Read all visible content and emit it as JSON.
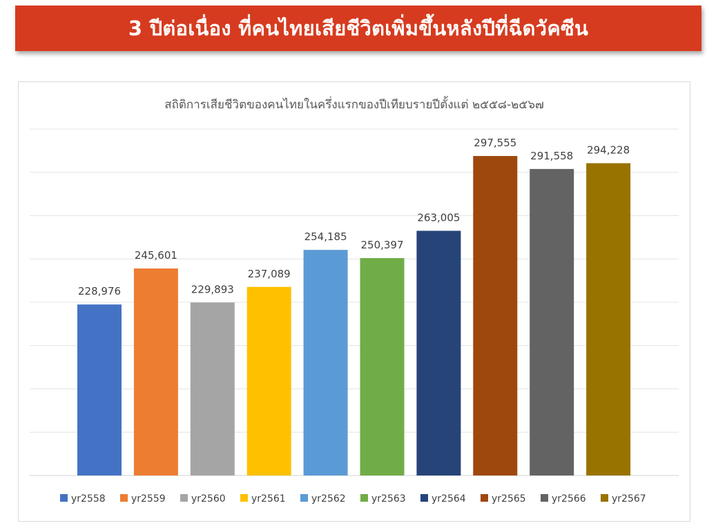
{
  "banner": {
    "title": "3 ปีต่อเนื่อง ที่คนไทยเสียชีวิตเพิ่มขึ้นหลังปีที่ฉีดวัคซีน"
  },
  "chart_data": {
    "type": "bar",
    "title": "สถิติการเสียชีวิตของคนไทยในครึ่งแรกของปีเทียบรายปีตั้งแต่ ๒๕๕๘-๒๕๖๗",
    "xlabel": "",
    "ylabel": "",
    "ylim": [
      150000,
      310000
    ],
    "grid": true,
    "legend": "bottom",
    "series": [
      {
        "name": "yr2558",
        "value": 228976,
        "label": "228,976",
        "color": "#4472c4"
      },
      {
        "name": "yr2559",
        "value": 245601,
        "label": "245,601",
        "color": "#ed7d31"
      },
      {
        "name": "yr2560",
        "value": 229893,
        "label": "229,893",
        "color": "#a5a5a5"
      },
      {
        "name": "yr2561",
        "value": 237089,
        "label": "237,089",
        "color": "#ffc000"
      },
      {
        "name": "yr2562",
        "value": 254185,
        "label": "254,185",
        "color": "#5b9bd5"
      },
      {
        "name": "yr2563",
        "value": 250397,
        "label": "250,397",
        "color": "#70ad47"
      },
      {
        "name": "yr2564",
        "value": 263005,
        "label": "263,005",
        "color": "#264478"
      },
      {
        "name": "yr2565",
        "value": 297555,
        "label": "297,555",
        "color": "#9e480e"
      },
      {
        "name": "yr2566",
        "value": 291558,
        "label": "291,558",
        "color": "#636363"
      },
      {
        "name": "yr2567",
        "value": 294228,
        "label": "294,228",
        "color": "#997300"
      }
    ]
  }
}
